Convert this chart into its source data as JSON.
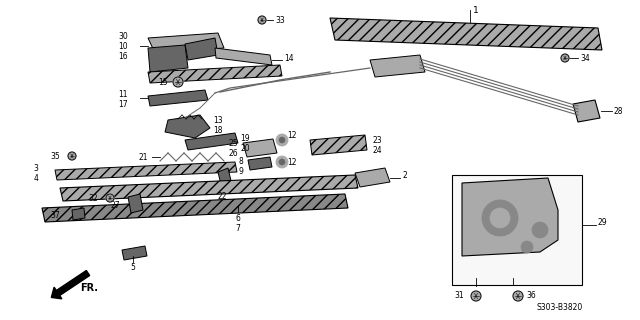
{
  "bg_color": "#ffffff",
  "part_number": "S303-B3820",
  "fr_label": "FR.",
  "lc": "#000000"
}
